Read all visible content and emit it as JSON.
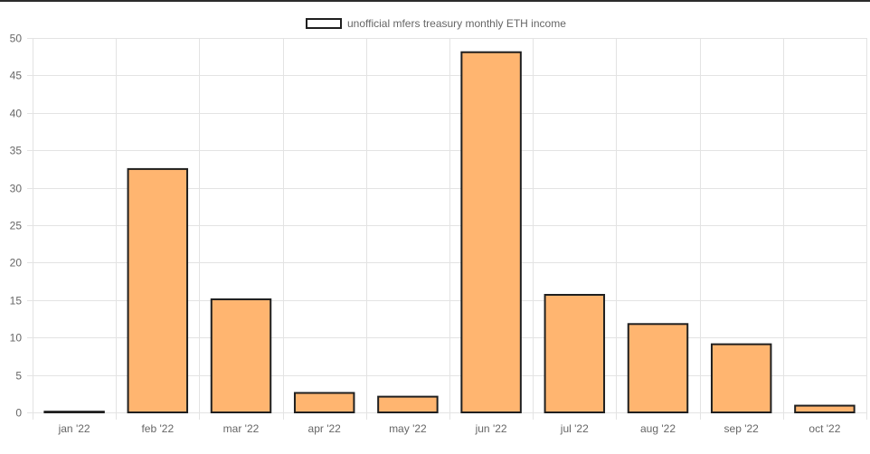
{
  "chart_data": {
    "type": "bar",
    "categories": [
      "jan '22",
      "feb '22",
      "mar '22",
      "apr '22",
      "may '22",
      "jun '22",
      "jul '22",
      "aug '22",
      "sep '22",
      "oct '22"
    ],
    "series": [
      {
        "name": "unofficial mfers treasury monthly ETH income",
        "values": [
          0.1,
          32.5,
          15.1,
          2.6,
          2.1,
          48.1,
          15.7,
          11.8,
          9.1,
          0.9
        ]
      }
    ],
    "title": "",
    "xlabel": "",
    "ylabel": "",
    "ylim": [
      0,
      50
    ],
    "yticks": [
      0,
      5,
      10,
      15,
      20,
      25,
      30,
      35,
      40,
      45,
      50
    ],
    "grid": true,
    "legend_position": "top-center",
    "colors": {
      "bar_fill": "#ffb570",
      "bar_border": "#1f1f1f",
      "grid": "#e3e3e3",
      "tick_text": "#666666"
    }
  }
}
